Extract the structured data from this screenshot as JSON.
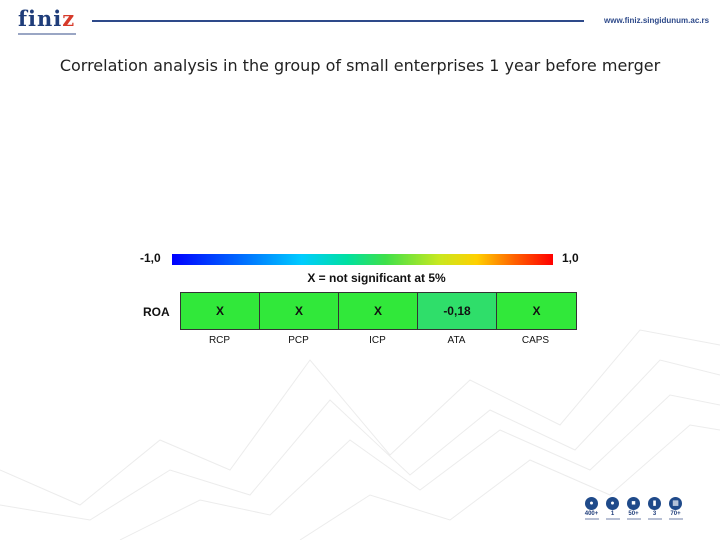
{
  "header": {
    "logo": "finiz",
    "url": "www.finiz.singidunum.ac.rs"
  },
  "slide": {
    "title": "Correlation analysis in the group of small enterprises 1 year before merger"
  },
  "figure": {
    "scale_min": "-1,0",
    "scale_max": "1,0",
    "note": "X = not significant at 5%",
    "row_label": "ROA",
    "cells": [
      {
        "column": "RCP",
        "value": "X",
        "color": "#31e83a"
      },
      {
        "column": "PCP",
        "value": "X",
        "color": "#31e83a"
      },
      {
        "column": "ICP",
        "value": "X",
        "color": "#31e83a"
      },
      {
        "column": "ATA",
        "value": "-0,18",
        "color": "#2fde6a"
      },
      {
        "column": "CAPS",
        "value": "X",
        "color": "#31e83a"
      }
    ]
  },
  "footer_stats": [
    {
      "icon": "students-icon",
      "number": "400+"
    },
    {
      "icon": "people-icon",
      "number": "1"
    },
    {
      "icon": "presentation-icon",
      "number": "50+"
    },
    {
      "icon": "book-icon",
      "number": "3"
    },
    {
      "icon": "building-icon",
      "number": "70+"
    }
  ]
}
